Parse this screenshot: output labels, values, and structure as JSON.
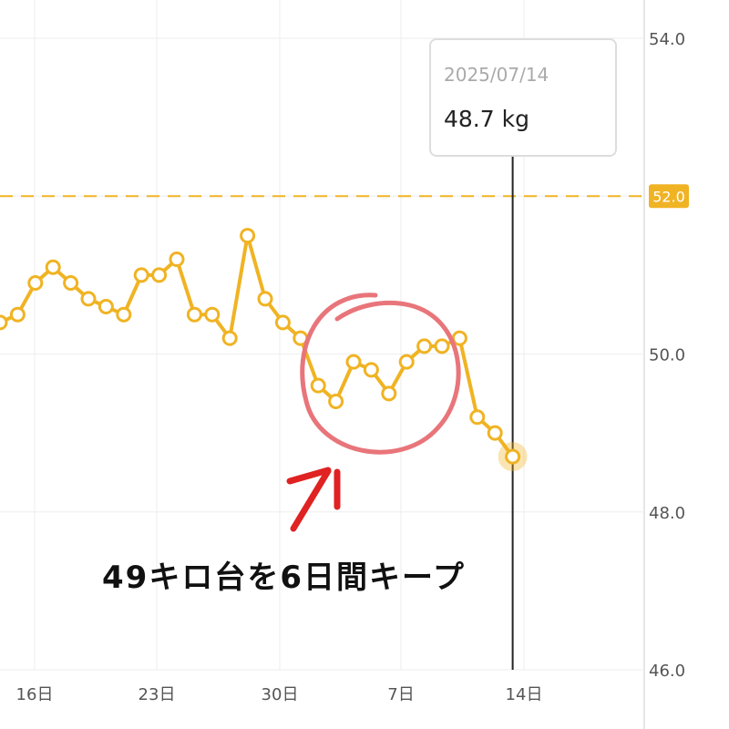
{
  "chart_data": {
    "type": "line",
    "x_tick_labels": [
      "16日",
      "23日",
      "30日",
      "7日",
      "14日"
    ],
    "y_tick_labels": [
      "54.0",
      "50.0",
      "48.0",
      "46.0"
    ],
    "ylim": [
      46.0,
      54.0
    ],
    "target_line": {
      "value": 52.0,
      "label": "52.0"
    },
    "series": [
      {
        "values": [
          50.4,
          50.5,
          50.9,
          51.1,
          50.9,
          50.7,
          50.6,
          50.5,
          51.0,
          51.0,
          51.2,
          50.5,
          50.5,
          50.2,
          51.5,
          50.7,
          50.4,
          50.2,
          49.6,
          49.4,
          49.9,
          49.8,
          49.5,
          49.9,
          50.1,
          50.1,
          50.2,
          49.2,
          49.0,
          48.7
        ]
      }
    ],
    "colors": {
      "line": "#f0b323",
      "target": "#f0b323",
      "grid": "#eeeeee",
      "cursor": "#222222",
      "circle": "#e8757a",
      "arrow": "#e02222"
    },
    "grid": true
  },
  "tooltip": {
    "date": "2025/07/14",
    "value": "48.7 kg"
  },
  "annotation": {
    "text": "49キロ台を6日間キープ"
  }
}
